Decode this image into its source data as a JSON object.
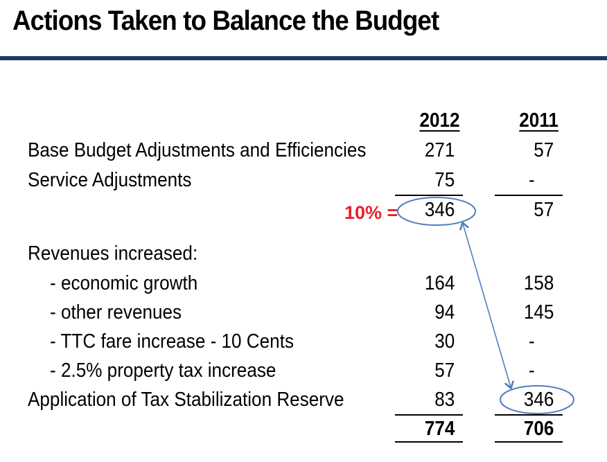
{
  "title": "Actions Taken to Balance the Budget",
  "columns": [
    "2012",
    "2011"
  ],
  "rows": [
    {
      "label": "Base Budget Adjustments and Efficiencies",
      "v2012": "271",
      "v2011": "57"
    },
    {
      "label": "Service Adjustments",
      "v2012": "75",
      "v2011": "-"
    },
    {
      "label": "",
      "v2012": "346",
      "v2011": "57"
    },
    {
      "label": "Revenues increased:",
      "v2012": "",
      "v2011": ""
    },
    {
      "label": "- economic growth",
      "v2012": "164",
      "v2011": "158"
    },
    {
      "label": "- other revenues",
      "v2012": "94",
      "v2011": "145"
    },
    {
      "label": "- TTC fare increase - 10 Cents",
      "v2012": "30",
      "v2011": "-"
    },
    {
      "label": "- 2.5% property tax increase",
      "v2012": "57",
      "v2011": "-"
    },
    {
      "label": "Application of Tax Stabilization Reserve",
      "v2012": "83",
      "v2011": "346"
    }
  ],
  "total": {
    "v2012": "774",
    "v2011": "706"
  },
  "annotation": {
    "label": "10% =",
    "color": "#e8202a"
  },
  "colors": {
    "title_rule": "#1f3864",
    "circle": "#4f7fc0",
    "arrow": "#4f7fc0"
  }
}
